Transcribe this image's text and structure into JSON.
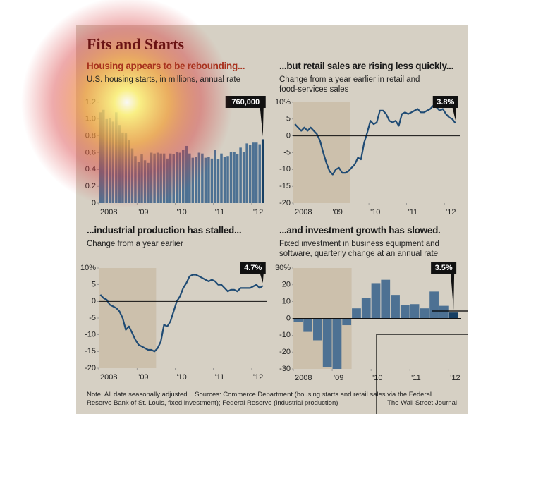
{
  "header": {
    "title": "Fits and Starts"
  },
  "chart_data": [
    {
      "type": "bar",
      "title": "Housing appears to be rebounding...",
      "subtitle": "U.S. housing starts, in millions, annual rate",
      "categories": [
        "2008",
        null,
        null,
        null,
        null,
        null,
        null,
        null,
        null,
        null,
        null,
        null,
        "'09",
        null,
        null,
        null,
        null,
        null,
        null,
        null,
        null,
        null,
        null,
        null,
        "'10",
        null,
        null,
        null,
        null,
        null,
        null,
        null,
        null,
        null,
        null,
        null,
        "'11",
        null,
        null,
        null,
        null,
        null,
        null,
        null,
        null,
        null,
        null,
        null,
        "'12",
        null,
        null,
        null
      ],
      "values": [
        1.08,
        1.11,
        1.0,
        1.01,
        0.97,
        1.08,
        0.93,
        0.84,
        0.83,
        0.75,
        0.65,
        0.56,
        0.49,
        0.58,
        0.51,
        0.48,
        0.6,
        0.59,
        0.6,
        0.59,
        0.59,
        0.53,
        0.59,
        0.58,
        0.61,
        0.6,
        0.63,
        0.68,
        0.59,
        0.54,
        0.55,
        0.6,
        0.59,
        0.54,
        0.55,
        0.53,
        0.63,
        0.52,
        0.59,
        0.55,
        0.56,
        0.61,
        0.61,
        0.58,
        0.66,
        0.61,
        0.71,
        0.69,
        0.72,
        0.72,
        0.7,
        0.76
      ],
      "value_labels": [
        null,
        null,
        null,
        null,
        null,
        null,
        null,
        null,
        null,
        null,
        null,
        null,
        null,
        null,
        null,
        null,
        null,
        null,
        null,
        null,
        null,
        null,
        null,
        null,
        null,
        null,
        null,
        null,
        null,
        null,
        null,
        null,
        null,
        null,
        null,
        null,
        null,
        null,
        null,
        null,
        null,
        null,
        null,
        null,
        null,
        null,
        null,
        null,
        null,
        null,
        null,
        "760,000"
      ],
      "color": "#4d7193",
      "highlight_color": "#173f63",
      "ylim": [
        0,
        1.2
      ],
      "yticks": [
        0,
        0.2,
        0.4,
        0.6,
        0.8,
        {
          "value": 1,
          "label": "1.0"
        },
        1.2
      ]
    },
    {
      "type": "line",
      "title": "...but retail sales are rising less quickly...",
      "subtitle": "Change from a year earlier in retail and food-services sales",
      "categories": [
        "2008",
        null,
        null,
        null,
        null,
        null,
        null,
        null,
        null,
        null,
        null,
        null,
        "'09",
        null,
        null,
        null,
        null,
        null,
        null,
        null,
        null,
        null,
        null,
        null,
        "'10",
        null,
        null,
        null,
        null,
        null,
        null,
        null,
        null,
        null,
        null,
        null,
        "'11",
        null,
        null,
        null,
        null,
        null,
        null,
        null,
        null,
        null,
        null,
        null,
        "'12",
        null,
        null,
        null
      ],
      "values": [
        3.5,
        2.5,
        1.5,
        2.5,
        1.5,
        2.5,
        1.5,
        0.5,
        -1.5,
        -5,
        -8,
        -10.5,
        -11.5,
        -10,
        -9.5,
        -11,
        -11,
        -10.5,
        -9.5,
        -8.5,
        -6.5,
        -7,
        -2,
        1,
        4.5,
        3.5,
        4,
        7.5,
        7.5,
        6.5,
        4.5,
        4,
        4.5,
        3,
        6.5,
        7,
        6.5,
        7,
        7.5,
        8,
        7,
        7,
        7.5,
        8,
        9,
        8.5,
        7.5,
        8,
        6.5,
        5.5,
        5,
        3.8
      ],
      "value_labels": [
        null,
        null,
        null,
        null,
        null,
        null,
        null,
        null,
        null,
        null,
        null,
        null,
        null,
        null,
        null,
        null,
        null,
        null,
        null,
        null,
        null,
        null,
        null,
        null,
        null,
        null,
        null,
        null,
        null,
        null,
        null,
        null,
        null,
        null,
        null,
        null,
        null,
        null,
        null,
        null,
        null,
        null,
        null,
        null,
        null,
        null,
        null,
        null,
        null,
        null,
        null,
        "3.8%"
      ],
      "color": "#1f4b74",
      "ylim": [
        -20,
        10
      ],
      "yticks": [
        -20,
        -15,
        -10,
        -5,
        0,
        5,
        {
          "value": 10,
          "label": "10%"
        }
      ]
    },
    {
      "type": "line",
      "title": "...industrial production has stalled...",
      "subtitle": "Change from a year earlier",
      "categories": [
        "2008",
        null,
        null,
        null,
        null,
        null,
        null,
        null,
        null,
        null,
        null,
        null,
        "'09",
        null,
        null,
        null,
        null,
        null,
        null,
        null,
        null,
        null,
        null,
        null,
        "'10",
        null,
        null,
        null,
        null,
        null,
        null,
        null,
        null,
        null,
        null,
        null,
        "'11",
        null,
        null,
        null,
        null,
        null,
        null,
        null,
        null,
        null,
        null,
        null,
        "'12",
        null,
        null,
        null
      ],
      "values": [
        2,
        1,
        0.5,
        -1,
        -1.5,
        -2,
        -3,
        -5,
        -8.5,
        -7.5,
        -9.5,
        -11.5,
        -13,
        -13.5,
        -14,
        -14.5,
        -14.5,
        -15,
        -14,
        -12,
        -7,
        -7.5,
        -6,
        -3,
        0,
        1.5,
        4,
        5.5,
        7.5,
        8,
        8,
        7.5,
        7,
        6.5,
        6,
        6.5,
        6,
        5,
        5,
        4,
        3,
        3.5,
        3.5,
        3,
        4,
        4,
        4,
        4,
        4.5,
        5,
        4,
        4.7
      ],
      "value_labels": [
        null,
        null,
        null,
        null,
        null,
        null,
        null,
        null,
        null,
        null,
        null,
        null,
        null,
        null,
        null,
        null,
        null,
        null,
        null,
        null,
        null,
        null,
        null,
        null,
        null,
        null,
        null,
        null,
        null,
        null,
        null,
        null,
        null,
        null,
        null,
        null,
        null,
        null,
        null,
        null,
        null,
        null,
        null,
        null,
        null,
        null,
        null,
        null,
        null,
        null,
        null,
        "4.7%"
      ],
      "color": "#1f4b74",
      "ylim": [
        -20,
        10
      ],
      "yticks": [
        -20,
        -15,
        -10,
        -5,
        0,
        5,
        {
          "value": 10,
          "label": "10%"
        }
      ]
    },
    {
      "type": "bar",
      "title": "...and investment growth has slowed.",
      "subtitle": "Fixed investment in business equipment and software, quarterly change at an annual rate",
      "categories": [
        "2008",
        null,
        null,
        null,
        "'09",
        null,
        null,
        null,
        "'10",
        null,
        null,
        null,
        "'11",
        null,
        null,
        null,
        "'12"
      ],
      "values": [
        -2,
        -8,
        -13,
        -29,
        -30,
        -4,
        6,
        12,
        21,
        23,
        14,
        8,
        8.5,
        6,
        16,
        7.5,
        3.5
      ],
      "value_labels": [
        null,
        null,
        null,
        null,
        null,
        null,
        null,
        null,
        null,
        null,
        null,
        null,
        null,
        null,
        null,
        null,
        "3.5%"
      ],
      "color": "#4d7193",
      "highlight_color": "#173f63",
      "ylim": [
        -30,
        30
      ],
      "yticks": [
        -30,
        -20,
        -10,
        0,
        10,
        20,
        {
          "value": 30,
          "label": "30%"
        }
      ]
    }
  ],
  "footer": {
    "note": "Note: All data seasonally adjusted",
    "sources": "Sources: Commerce Department (housing starts and retail sales via the Federal Reserve Bank of St. Louis, fixed investment); Federal Reserve (industrial production)",
    "credit": "The Wall Street Journal"
  }
}
